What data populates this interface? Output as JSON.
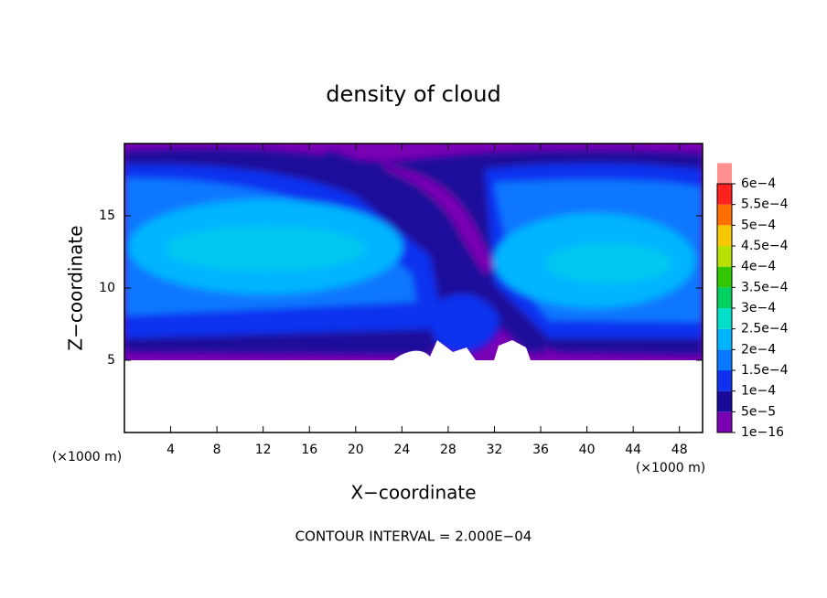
{
  "chart_data": {
    "type": "contour",
    "title": "density of cloud",
    "xlabel": "X−coordinate",
    "ylabel": "Z−coordinate",
    "x_unit": "(×1000 m)",
    "footnote": "CONTOUR INTERVAL = 2.000E−04",
    "xlim": [
      0,
      50
    ],
    "ylim": [
      0,
      20
    ],
    "xticks": [
      4,
      8,
      12,
      16,
      20,
      24,
      28,
      32,
      36,
      40,
      44,
      48
    ],
    "yticks": [
      5,
      10,
      15
    ],
    "colorbar": {
      "levels": [
        {
          "value": 1e-16,
          "label": "1e−16"
        },
        {
          "value": 5e-05,
          "label": "5e−5"
        },
        {
          "value": 0.0001,
          "label": "1e−4"
        },
        {
          "value": 0.00015,
          "label": "1.5e−4"
        },
        {
          "value": 0.0002,
          "label": "2e−4"
        },
        {
          "value": 0.00025,
          "label": "2.5e−4"
        },
        {
          "value": 0.0003,
          "label": "3e−4"
        },
        {
          "value": 0.00035,
          "label": "3.5e−4"
        },
        {
          "value": 0.0004,
          "label": "4e−4"
        },
        {
          "value": 0.00045,
          "label": "4.5e−4"
        },
        {
          "value": 0.0005,
          "label": "5e−4"
        },
        {
          "value": 0.00055,
          "label": "5.5e−4"
        },
        {
          "value": 0.0006,
          "label": "6e−4"
        }
      ],
      "colors": [
        "#7a00b4",
        "#1a0a9a",
        "#1030f0",
        "#0a78ff",
        "#00b4ff",
        "#00e0c8",
        "#00d060",
        "#30c800",
        "#b8e000",
        "#f8c800",
        "#ff7000",
        "#ff2020",
        "#ff9090"
      ]
    }
  }
}
